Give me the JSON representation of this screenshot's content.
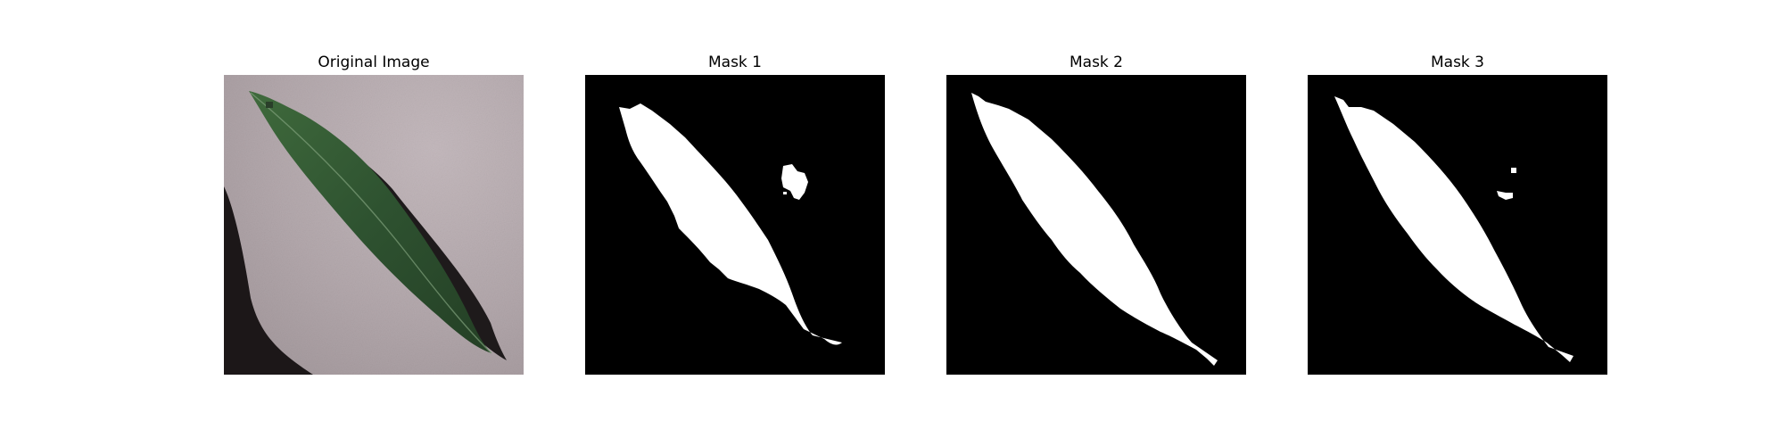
{
  "figure": {
    "panels": [
      {
        "title": "Original Image"
      },
      {
        "title": "Mask 1"
      },
      {
        "title": "Mask 2"
      },
      {
        "title": "Mask 3"
      }
    ]
  },
  "colors": {
    "mask_background": "#000000",
    "mask_foreground": "#ffffff",
    "leaf_green": "#2c4a2a",
    "surface_gray": "#b9aeb2",
    "shadow": "#1c1718"
  }
}
